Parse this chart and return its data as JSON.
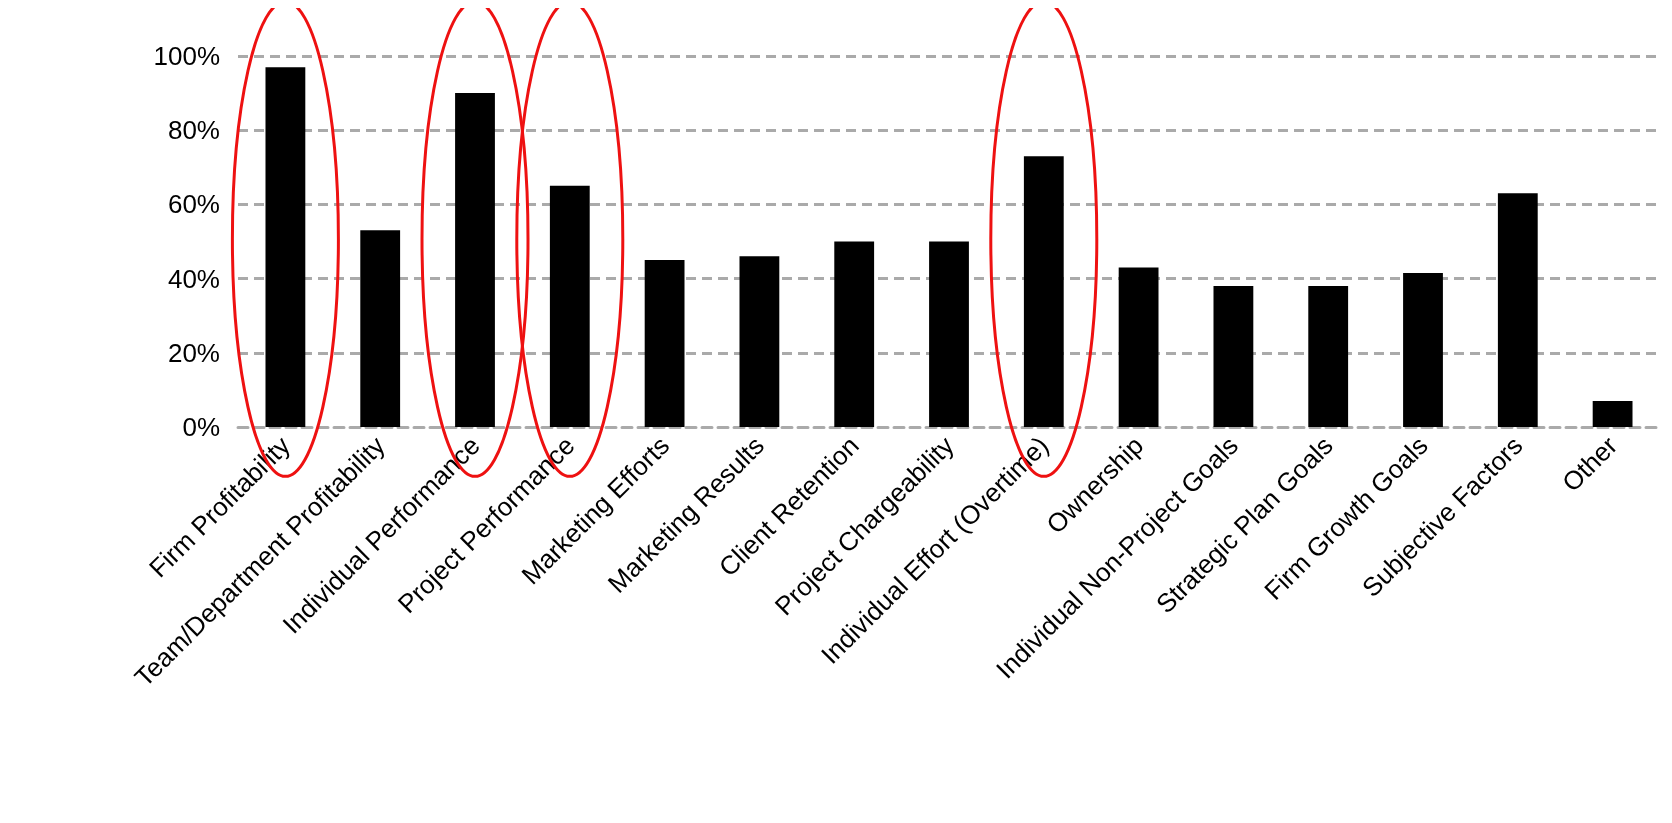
{
  "chart_data": {
    "type": "bar",
    "categories": [
      "Firm Profitability",
      "Team/Department Profitability",
      "Individual Performance",
      "Project Performance",
      "Marketing Efforts",
      "Marketing Results",
      "Client Retention",
      "Project Chargeability",
      "Individual Effort (Overtime)",
      "Ownership",
      "Individual Non-Project Goals",
      "Strategic Plan Goals",
      "Firm Growth Goals",
      "Subjective Factors",
      "Other"
    ],
    "values": [
      97,
      53,
      90,
      65,
      45,
      46,
      50,
      50,
      73,
      43,
      38,
      38,
      41.5,
      63,
      7
    ],
    "color": "#000000",
    "ylim": [
      0,
      100
    ],
    "yticks": [
      {
        "value": 0,
        "label": "0%"
      },
      {
        "value": 20,
        "label": "20%"
      },
      {
        "value": 40,
        "label": "40%"
      },
      {
        "value": 60,
        "label": "60%"
      },
      {
        "value": 80,
        "label": "80%"
      },
      {
        "value": 100,
        "label": "100%"
      }
    ],
    "grid": "y"
  }
}
